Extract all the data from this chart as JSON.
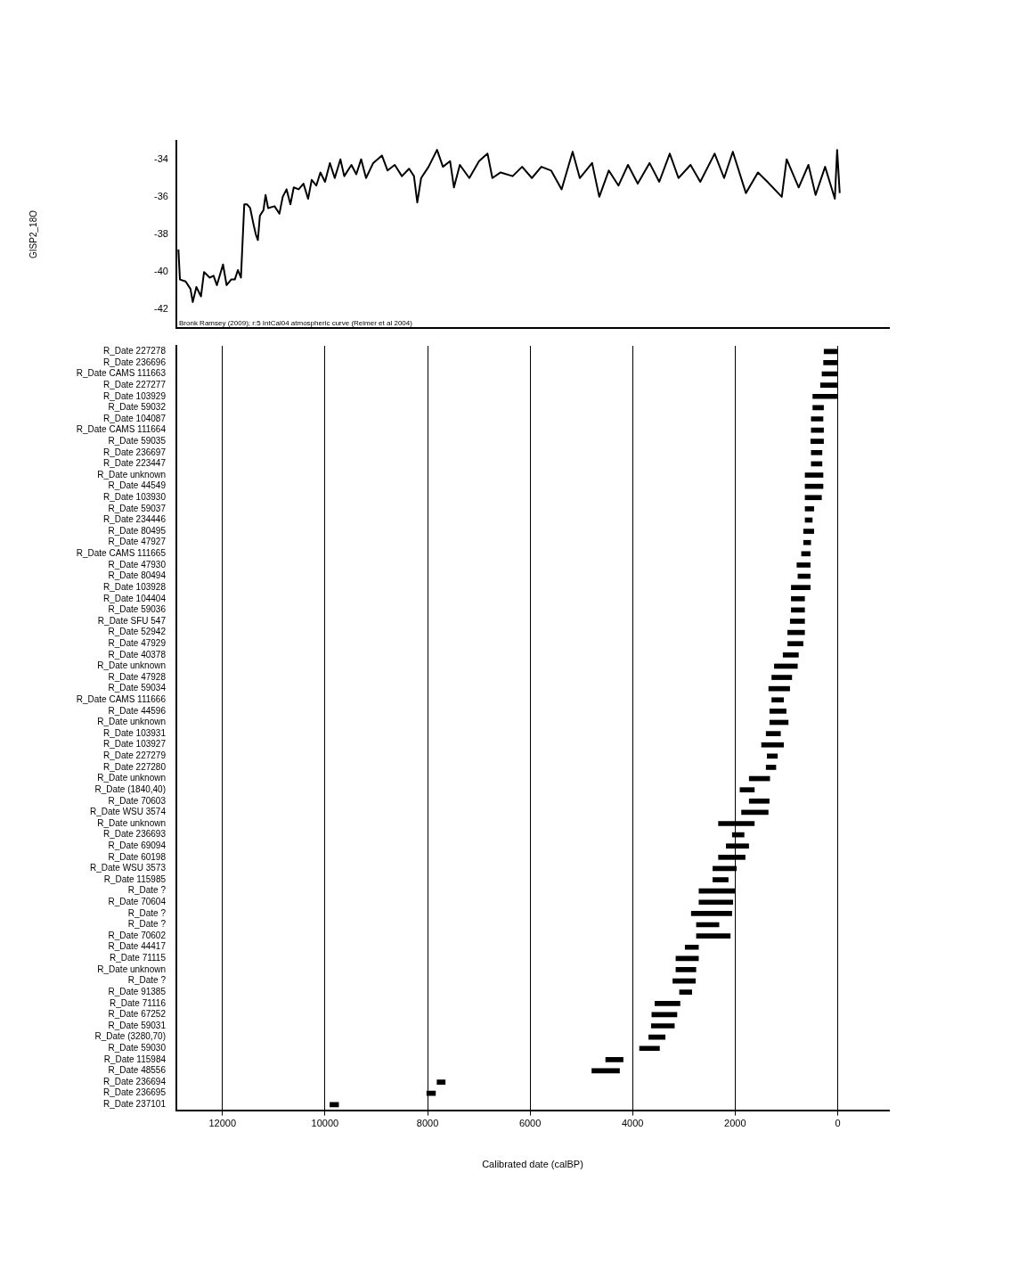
{
  "chart_data": [
    {
      "type": "line",
      "ylabel": "GISP2_18O",
      "color": "#000000",
      "x": [
        12860,
        12830,
        12720,
        12625,
        12580,
        12510,
        12420,
        12360,
        12250,
        12175,
        12110,
        11990,
        11920,
        11830,
        11760,
        11700,
        11640,
        11575,
        11520,
        11460,
        11400,
        11350,
        11310,
        11270,
        11200,
        11160,
        11110,
        10985,
        10890,
        10825,
        10750,
        10675,
        10610,
        10515,
        10420,
        10330,
        10260,
        10170,
        10090,
        10000,
        9905,
        9810,
        9700,
        9625,
        9485,
        9390,
        9295,
        9200,
        9060,
        8890,
        8780,
        8640,
        8500,
        8360,
        8265,
        8200,
        8125,
        7980,
        7815,
        7700,
        7560,
        7485,
        7370,
        7185,
        6995,
        6830,
        6735,
        6575,
        6340,
        6155,
        5965,
        5780,
        5590,
        5385,
        5170,
        5030,
        4790,
        4650,
        4465,
        4275,
        4090,
        3900,
        3670,
        3480,
        3275,
        3105,
        2870,
        2680,
        2400,
        2215,
        2045,
        1790,
        1555,
        1370,
        1090,
        995,
        760,
        570,
        430,
        245,
        55,
        10,
        -40
      ],
      "values": [
        -38.8,
        -40.4,
        -40.5,
        -40.9,
        -41.6,
        -40.8,
        -41.3,
        -40.0,
        -40.3,
        -40.2,
        -40.7,
        -39.6,
        -40.7,
        -40.4,
        -40.4,
        -39.9,
        -40.3,
        -36.4,
        -36.4,
        -36.6,
        -37.4,
        -38.0,
        -38.3,
        -37.0,
        -36.7,
        -35.9,
        -36.6,
        -36.5,
        -36.9,
        -36.0,
        -35.6,
        -36.4,
        -35.5,
        -35.6,
        -35.3,
        -36.1,
        -35.1,
        -35.4,
        -34.7,
        -35.2,
        -34.2,
        -35.0,
        -34.0,
        -34.9,
        -34.3,
        -34.8,
        -34.0,
        -35.0,
        -34.2,
        -33.8,
        -34.6,
        -34.3,
        -34.9,
        -34.5,
        -34.9,
        -36.3,
        -35.0,
        -34.4,
        -33.5,
        -34.4,
        -34.1,
        -35.5,
        -34.3,
        -35.0,
        -34.1,
        -33.7,
        -35.0,
        -34.7,
        -34.9,
        -34.4,
        -35.0,
        -34.4,
        -34.6,
        -35.6,
        -33.6,
        -35.0,
        -34.2,
        -36.0,
        -34.6,
        -35.4,
        -34.3,
        -35.3,
        -34.2,
        -35.2,
        -33.7,
        -35.0,
        -34.3,
        -35.2,
        -33.7,
        -35.0,
        -33.6,
        -35.8,
        -34.7,
        -35.2,
        -36.0,
        -34.0,
        -35.5,
        -34.3,
        -35.9,
        -34.4,
        -36.1,
        -33.5,
        -35.8
      ],
      "xlim": [
        12900,
        -1000
      ],
      "xticks": [
        12000,
        10000,
        8000,
        6000,
        4000,
        2000,
        0
      ],
      "ylim": [
        -43,
        -33
      ],
      "yticks": [
        -42,
        -40,
        -38,
        -36,
        -34
      ],
      "tick_labels": "y",
      "annotations": [
        "Bronk Ramsey (2009); r:5 IntCal04 atmospheric curve (Reimer et al 2004)"
      ]
    },
    {
      "type": "bar",
      "orientation": "horizontal",
      "color": "#000000",
      "xlabel": "Calibrated date (calBP)",
      "categories": [
        "R_Date 227278",
        "R_Date 236696",
        "R_Date CAMS 111663",
        "R_Date 227277",
        "R_Date 103929",
        "R_Date 59032",
        "R_Date 104087",
        "R_Date CAMS 111664",
        "R_Date 59035",
        "R_Date 236697",
        "R_Date 223447",
        "R_Date unknown",
        "R_Date 44549",
        "R_Date 103930",
        "R_Date 59037",
        "R_Date 234446",
        "R_Date 80495",
        "R_Date 47927",
        "R_Date CAMS 111665",
        "R_Date 47930",
        "R_Date 80494",
        "R_Date 103928",
        "R_Date 104404",
        "R_Date 59036",
        "R_Date SFU 547",
        "R_Date 52942",
        "R_Date 47929",
        "R_Date 40378",
        "R_Date unknown",
        "R_Date 47928",
        "R_Date 59034",
        "R_Date CAMS 111666",
        "R_Date 44596",
        "R_Date unknown",
        "R_Date 103931",
        "R_Date 103927",
        "R_Date 227279",
        "R_Date 227280",
        "R_Date unknown",
        "R_Date (1840,40)",
        "R_Date 70603",
        "R_Date WSU 3574",
        "R_Date unknown",
        "R_Date 236693",
        "R_Date 69094",
        "R_Date 60198",
        "R_Date WSU 3573",
        "R_Date 115985",
        "R_Date ?",
        "R_Date 70604",
        "R_Date ?",
        "R_Date ?",
        "R_Date 70602",
        "R_Date 44417",
        "R_Date 71115",
        "R_Date unknown",
        "R_Date ?",
        "R_Date 91385",
        "R_Date 71116",
        "R_Date 67252",
        "R_Date 59031",
        "R_Date (3280,70)",
        "R_Date 59030",
        "R_Date 115984",
        "R_Date 48556",
        "R_Date 236694",
        "R_Date 236695",
        "R_Date 237101"
      ],
      "base": [
        0,
        0,
        0,
        0,
        0,
        270,
        280,
        270,
        270,
        300,
        300,
        280,
        280,
        310,
        460,
        490,
        460,
        520,
        530,
        530,
        530,
        530,
        640,
        640,
        640,
        640,
        670,
        760,
        780,
        890,
        930,
        1050,
        1000,
        960,
        1110,
        1050,
        1170,
        1200,
        1320,
        1620,
        1330,
        1350,
        1620,
        1820,
        1730,
        1800,
        1970,
        2130,
        2000,
        2040,
        2060,
        2310,
        2090,
        2710,
        2710,
        2760,
        2770,
        2840,
        3070,
        3130,
        3180,
        3360,
        3470,
        4180,
        4250,
        7650,
        7840,
        9730
      ],
      "values": [
        270,
        280,
        310,
        340,
        490,
        220,
        240,
        250,
        260,
        220,
        220,
        360,
        360,
        330,
        180,
        150,
        210,
        150,
        180,
        270,
        250,
        380,
        270,
        270,
        290,
        340,
        310,
        310,
        460,
        400,
        420,
        240,
        330,
        370,
        290,
        440,
        210,
        200,
        410,
        290,
        400,
        530,
        710,
        240,
        450,
        530,
        470,
        310,
        710,
        670,
        800,
        450,
        670,
        270,
        450,
        400,
        450,
        250,
        500,
        500,
        460,
        330,
        400,
        350,
        550,
        170,
        180,
        180
      ],
      "xlim": [
        12900,
        -1000
      ],
      "xticks": [
        12000,
        10000,
        8000,
        6000,
        4000,
        2000,
        0
      ],
      "grid": "x"
    }
  ]
}
